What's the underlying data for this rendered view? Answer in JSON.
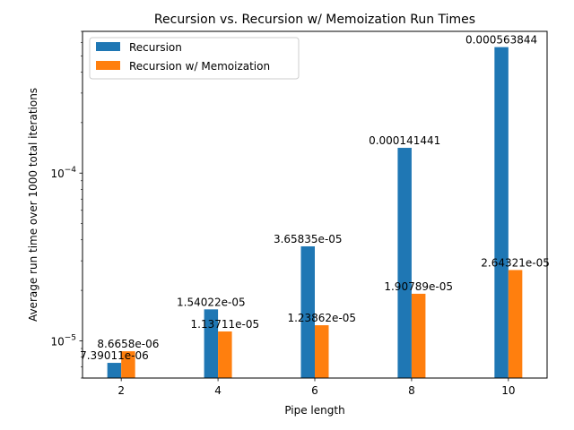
{
  "chart_data": {
    "type": "bar",
    "title": "Recursion vs. Recursion w/ Memoization Run Times",
    "xlabel": "Pipe length",
    "ylabel": "Average run time over 1000 total iterations",
    "categories": [
      "2",
      "4",
      "6",
      "8",
      "10"
    ],
    "x": [
      2,
      4,
      6,
      8,
      10
    ],
    "xlim": [
      1.2,
      10.8
    ],
    "y_scale": "log",
    "ylim": [
      6e-06,
      0.0007
    ],
    "y_ticks": [
      {
        "value": 1e-05,
        "base": "10",
        "exp": "−5"
      },
      {
        "value": 0.0001,
        "base": "10",
        "exp": "−4"
      }
    ],
    "legend_position": "upper-left",
    "grid": false,
    "series": [
      {
        "name": "Recursion",
        "color": "#1f77b4",
        "values": [
          7.39011e-06,
          1.54022e-05,
          3.65835e-05,
          0.000141441,
          0.000563844
        ],
        "labels": [
          "7.39011e-06",
          "1.54022e-05",
          "3.65835e-05",
          "0.000141441",
          "0.000563844"
        ]
      },
      {
        "name": "Recursion w/ Memoization",
        "color": "#ff7f0e",
        "values": [
          8.6658e-06,
          1.13711e-05,
          1.23862e-05,
          1.90789e-05,
          2.64321e-05
        ],
        "labels": [
          "8.6658e-06",
          "1.13711e-05",
          "1.23862e-05",
          "1.90789e-05",
          "2.64321e-05"
        ]
      }
    ]
  }
}
